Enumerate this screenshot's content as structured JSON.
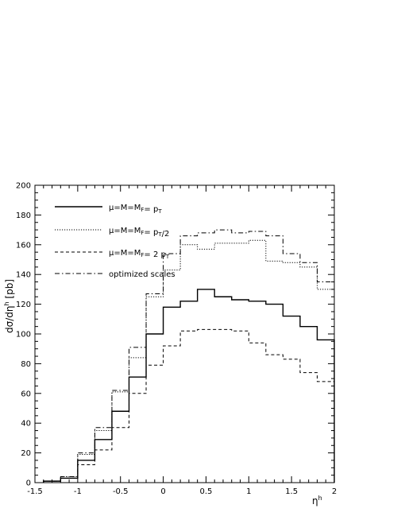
{
  "chart_data": {
    "type": "line",
    "drawstyle": "steps",
    "xlabel": "η^h",
    "ylabel": "dσ/dη^h [pb]",
    "xlim": [
      -1.5,
      2
    ],
    "ylim": [
      0,
      200
    ],
    "x_ticks": [
      "-1.5",
      "-1",
      "-0.5",
      "0",
      "0.5",
      "1",
      "1.5",
      "2"
    ],
    "y_ticks": [
      "0",
      "20",
      "40",
      "60",
      "80",
      "100",
      "120",
      "140",
      "160",
      "180",
      "200"
    ],
    "grid": false,
    "legend_position": "top-left",
    "bin_edges": [
      -1.4,
      -1.2,
      -1.0,
      -0.8,
      -0.6,
      -0.4,
      -0.2,
      0.0,
      0.2,
      0.4,
      0.6,
      0.8,
      1.0,
      1.2,
      1.4,
      1.6,
      1.8,
      2.0
    ],
    "series": [
      {
        "name": "μ=M=M_F= p_T",
        "style": "solid",
        "values": [
          1,
          3,
          15,
          29,
          48,
          71,
          100,
          118,
          122,
          130,
          125,
          123,
          122,
          120,
          112,
          105,
          96
        ]
      },
      {
        "name": "μ=M=M_F= p_T/2",
        "style": "dotted",
        "values": [
          1,
          4,
          19,
          35,
          61,
          84,
          125,
          143,
          160,
          157,
          161,
          161,
          163,
          149,
          148,
          145,
          130
        ]
      },
      {
        "name": "μ=M=M_F= 2 p_T",
        "style": "dashed",
        "values": [
          1,
          3,
          12,
          22,
          37,
          60,
          79,
          92,
          102,
          103,
          103,
          102,
          94,
          86,
          83,
          74,
          68
        ]
      },
      {
        "name": "optimized scales",
        "style": "dashdot",
        "values": [
          1,
          4,
          20,
          37,
          62,
          91,
          127,
          154,
          166,
          168,
          170,
          168,
          169,
          166,
          154,
          148,
          135
        ]
      }
    ]
  }
}
